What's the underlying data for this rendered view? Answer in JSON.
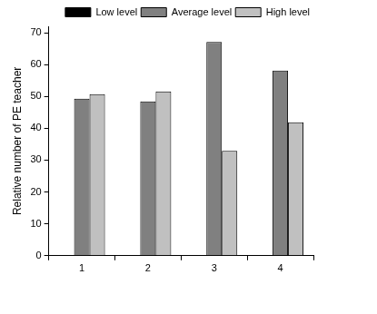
{
  "chart_data": {
    "type": "bar",
    "y_label": "Relative number of PE teacher",
    "categories": [
      "1",
      "2",
      "3",
      "4"
    ],
    "series": [
      {
        "name": "Low level",
        "color": "#000000",
        "values": [
          null,
          null,
          null,
          null
        ]
      },
      {
        "name": "Average level",
        "color": "#808080",
        "values": [
          49.3,
          48.4,
          67.1,
          58.1
        ]
      },
      {
        "name": "High level",
        "color": "#c0c0c0",
        "values": [
          50.7,
          51.6,
          32.9,
          41.9
        ]
      }
    ],
    "ylim": [
      0,
      72
    ],
    "yticks": [
      0,
      10,
      20,
      30,
      40,
      50,
      60,
      70
    ],
    "grid": false,
    "legend": "top-right"
  }
}
